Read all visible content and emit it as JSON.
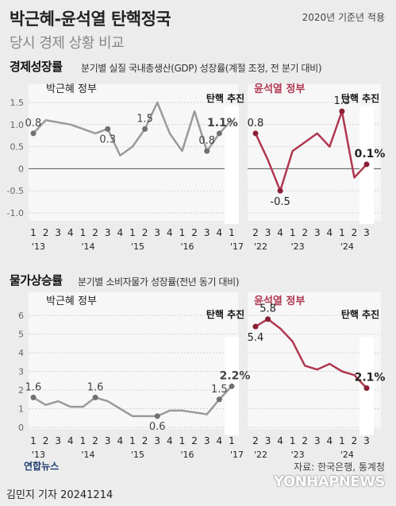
{
  "header": {
    "title": "박근혜-윤석열 탄핵정국",
    "subtitle": "당시 경제 상황 비교",
    "date_note": "2020년 기준년 적용"
  },
  "gdp": {
    "title": "경제성장률",
    "desc": "분기별 실질 국내총생산(GDP) 성장률(계절 조정, 전 분기 대비)",
    "left_label": "박근혜 정부",
    "right_label": "윤석열 정부",
    "impeach_label": "탄핵 추진",
    "y_ticks": [
      "1.5",
      "1.0",
      "0.5",
      "0",
      "-0.5",
      "-1.0"
    ]
  },
  "cpi": {
    "title": "물가상승률",
    "desc": "분기별 소비자물가 성장률(전년 동기 대비)",
    "left_label": "박근혜 정부",
    "right_label": "윤석열 정부",
    "impeach_label": "탄핵 추진",
    "y_ticks": [
      "6",
      "5",
      "4",
      "3",
      "2",
      "1",
      "0"
    ]
  },
  "footer": {
    "source": "자료: 한국은행, 통계청",
    "byline": "김민지 기자  20241214",
    "logo": "연합뉴스",
    "watermark": "YONHAPNEWS"
  },
  "chart_data": [
    {
      "type": "line",
      "title": "경제성장률",
      "ylabel": "",
      "ylim": [
        -1.0,
        1.5
      ],
      "panels": [
        {
          "name": "박근혜 정부",
          "quarters": [
            "1",
            "2",
            "3",
            "4",
            "1",
            "2",
            "3",
            "4",
            "1",
            "2",
            "3",
            "4",
            "1",
            "2",
            "3",
            "4",
            "1"
          ],
          "year_labels": [
            {
              "at": 0,
              "label": "'13"
            },
            {
              "at": 4,
              "label": "'14"
            },
            {
              "at": 8,
              "label": "'15"
            },
            {
              "at": 12,
              "label": "'16"
            },
            {
              "at": 16,
              "label": "'17"
            }
          ],
          "values": [
            0.8,
            1.1,
            1.0,
            0.9,
            0.8,
            0.9,
            0.3,
            0.5,
            0.9,
            1.5,
            0.8,
            0.4,
            1.3,
            0.4,
            0.8,
            1.1
          ],
          "x_index": [
            0,
            1,
            3,
            4,
            5,
            6,
            7,
            8,
            9,
            10,
            11,
            12,
            13,
            14,
            15,
            16
          ],
          "labels": [
            {
              "i": 0,
              "text": "0.8"
            },
            {
              "i": 6,
              "text": "0.3"
            },
            {
              "i": 9,
              "text": "1.5"
            },
            {
              "i": 14,
              "text": "0.8"
            },
            {
              "i": 15,
              "text": "1.1%"
            }
          ]
        },
        {
          "name": "윤석열 정부",
          "quarters": [
            "2",
            "3",
            "4",
            "1",
            "2",
            "3",
            "4",
            "1",
            "2",
            "3"
          ],
          "year_labels": [
            {
              "at": 0,
              "label": "'22"
            },
            {
              "at": 3,
              "label": "'23"
            },
            {
              "at": 7,
              "label": "'24"
            }
          ],
          "values": [
            0.8,
            0.2,
            -0.5,
            0.4,
            0.6,
            0.8,
            0.5,
            1.3,
            -0.2,
            0.1
          ],
          "labels": [
            {
              "i": 0,
              "text": "0.8"
            },
            {
              "i": 2,
              "text": "-0.5"
            },
            {
              "i": 7,
              "text": "1.3"
            },
            {
              "i": 9,
              "text": "0.1%"
            }
          ]
        }
      ]
    },
    {
      "type": "line",
      "title": "물가상승률",
      "ylabel": "",
      "ylim": [
        0,
        6
      ],
      "panels": [
        {
          "name": "박근혜 정부",
          "quarters": [
            "1",
            "2",
            "3",
            "4",
            "1",
            "2",
            "3",
            "4",
            "1",
            "2",
            "3",
            "4",
            "1",
            "2",
            "3",
            "4",
            "1"
          ],
          "year_labels": [
            {
              "at": 0,
              "label": "'13"
            },
            {
              "at": 4,
              "label": "'14"
            },
            {
              "at": 8,
              "label": "'15"
            },
            {
              "at": 12,
              "label": "'16"
            },
            {
              "at": 16,
              "label": "'17"
            }
          ],
          "values": [
            1.6,
            1.2,
            1.4,
            1.1,
            1.1,
            1.6,
            1.4,
            1.0,
            0.6,
            0.6,
            0.6,
            0.9,
            0.9,
            0.8,
            0.7,
            1.5,
            2.2
          ],
          "labels": [
            {
              "i": 0,
              "text": "1.6"
            },
            {
              "i": 5,
              "text": "1.6"
            },
            {
              "i": 10,
              "text": "0.6"
            },
            {
              "i": 15,
              "text": "1.5"
            },
            {
              "i": 16,
              "text": "2.2%"
            }
          ]
        },
        {
          "name": "윤석열 정부",
          "quarters": [
            "2",
            "3",
            "4",
            "1",
            "2",
            "3",
            "4",
            "1",
            "2",
            "3"
          ],
          "year_labels": [
            {
              "at": 0,
              "label": "'22"
            },
            {
              "at": 3,
              "label": "'23"
            },
            {
              "at": 7,
              "label": "'24"
            }
          ],
          "values": [
            5.4,
            5.8,
            5.3,
            4.6,
            3.3,
            3.1,
            3.4,
            3.0,
            2.8,
            2.1
          ],
          "labels": [
            {
              "i": 0,
              "text": "5.4"
            },
            {
              "i": 1,
              "text": "5.8"
            },
            {
              "i": 9,
              "text": "2.1%"
            }
          ]
        }
      ]
    }
  ]
}
